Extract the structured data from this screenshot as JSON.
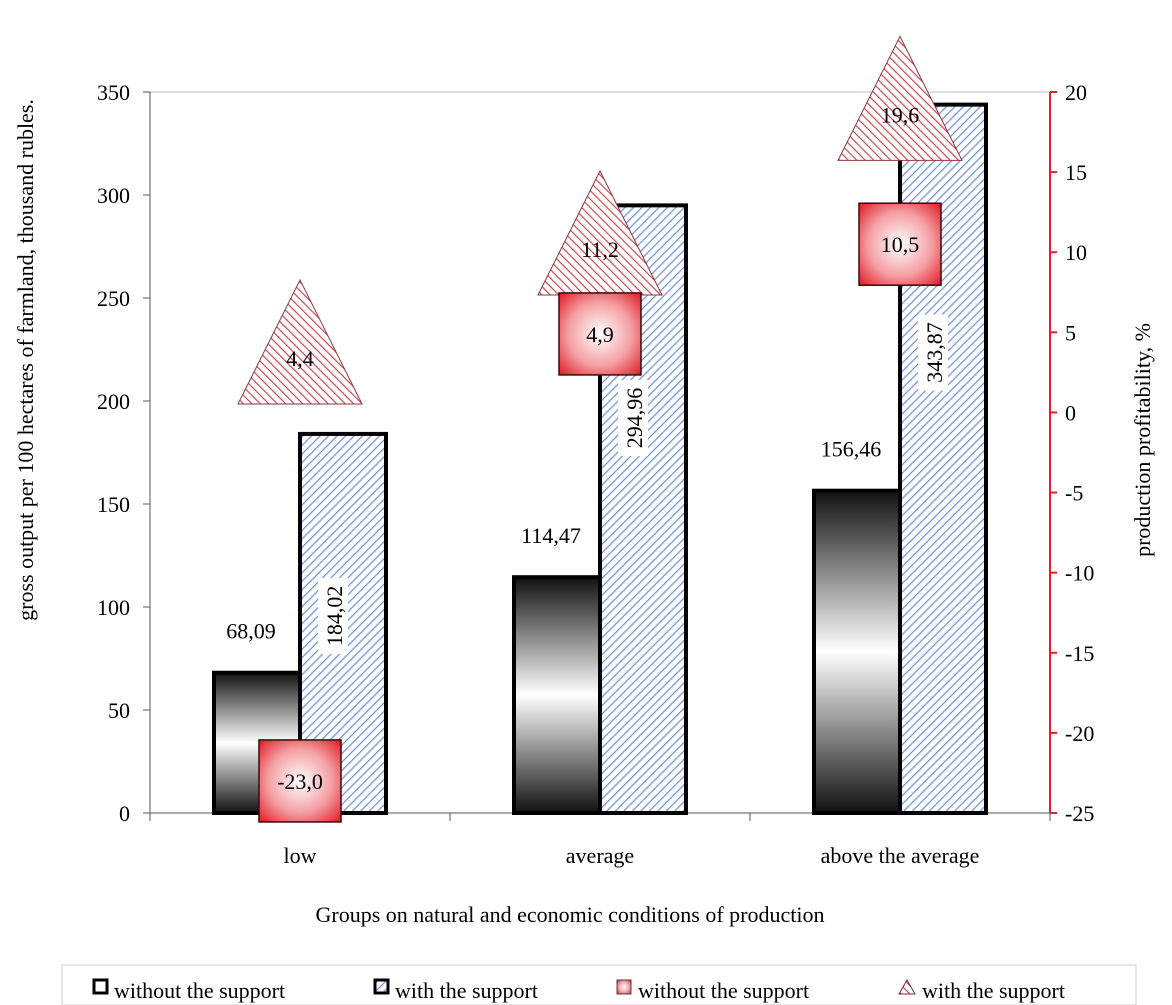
{
  "chart_data": {
    "type": "bar",
    "xlabel": "Groups on natural and economic conditions of production",
    "categories": [
      "low",
      "average",
      "above the average"
    ],
    "y_primary": {
      "label": "gross output per 100 hectares of farmland, thousand rubles.",
      "ylim": [
        0,
        350
      ],
      "ticks": [
        "0",
        "50",
        "100",
        "150",
        "200",
        "250",
        "300",
        "350"
      ]
    },
    "y_secondary": {
      "label": "production profitability, %",
      "ylim": [
        -25,
        20
      ],
      "ticks": [
        "-25",
        "-20",
        "-15",
        "-10",
        "-5",
        "0",
        "5",
        "10",
        "15",
        "20"
      ]
    },
    "series": [
      {
        "name": "without the support",
        "axis": "primary",
        "kind": "bar",
        "values": [
          68.09,
          114.47,
          156.46
        ],
        "labels": [
          "68,09",
          "114,47",
          "156,46"
        ]
      },
      {
        "name": "with the support",
        "axis": "primary",
        "kind": "bar",
        "values": [
          184.02,
          294.96,
          343.87
        ],
        "labels": [
          "184,02",
          "294,96",
          "343,87"
        ]
      },
      {
        "name": "without the support",
        "axis": "secondary",
        "kind": "square-marker",
        "values": [
          -23.0,
          4.9,
          10.5
        ],
        "labels": [
          "-23,0",
          "4,9",
          "10,5"
        ]
      },
      {
        "name": "with the support",
        "axis": "secondary",
        "kind": "triangle-marker",
        "values": [
          4.4,
          11.2,
          19.6
        ],
        "labels": [
          "4,4",
          "11,2",
          "19,6"
        ]
      }
    ],
    "grid": "horizontal-top-line",
    "legend_position": "bottom",
    "colors": {
      "secondary_axis": "#e0202a",
      "square_marker": "#e8262e",
      "triangle_hatch": "#cc2f3a",
      "bar_hatch": "#5a7ed6"
    }
  }
}
